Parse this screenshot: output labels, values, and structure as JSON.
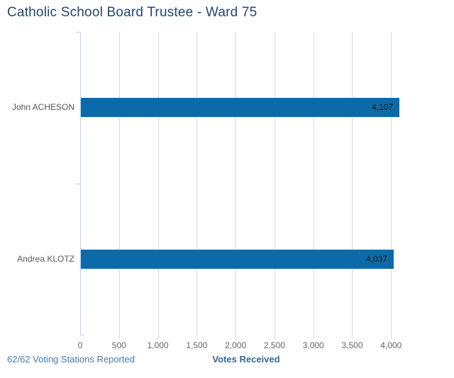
{
  "title": "Catholic School Board Trustee - Ward 75",
  "footer": {
    "stations_reported": "62/62 Voting Stations Reported"
  },
  "chart_data": {
    "type": "bar",
    "orientation": "horizontal",
    "title": "Catholic School Board Trustee - Ward 75",
    "xlabel": "Votes Received",
    "ylabel": "",
    "categories": [
      "John ACHESON",
      "Andrea KLOTZ"
    ],
    "values": [
      4107,
      4037
    ],
    "value_labels": [
      "4,107",
      "4,037"
    ],
    "xlim": [
      0,
      4107
    ],
    "xticks": [
      0,
      500,
      1000,
      1500,
      2000,
      2500,
      3000,
      3500,
      4000
    ],
    "xtick_labels": [
      "0",
      "500",
      "1,000",
      "1,500",
      "2,000",
      "2,500",
      "3,000",
      "3,500",
      "4,000"
    ],
    "grid": true,
    "legend_position": "none",
    "bar_color": "#0d6aa8",
    "annotation": "62/62 Voting Stations Reported"
  },
  "colors": {
    "bar": "#0d6aa8",
    "title_text": "#24476e",
    "category_text": "#575757",
    "tick_text": "#666666",
    "value_text": "#1c1c1c",
    "gridline": "#d9d9d9",
    "axis_line": "#c2d2e2",
    "stations_text": "#4779ab",
    "axis_title_text": "#36689c",
    "background": "#ffffff"
  }
}
